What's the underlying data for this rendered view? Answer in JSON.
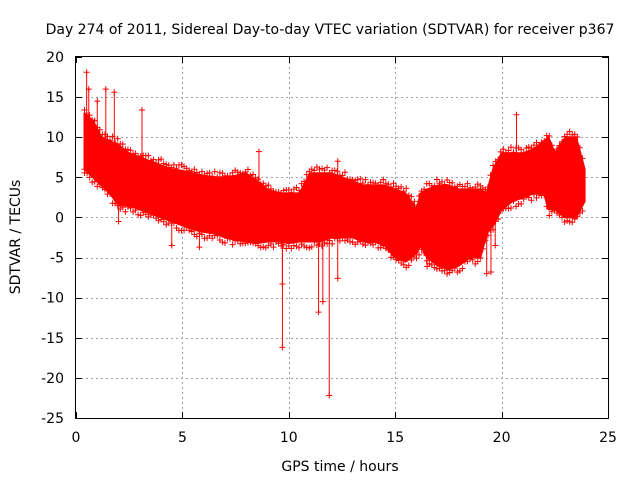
{
  "chart_data": {
    "type": "scatter",
    "title": "Day 274 of 2011, Sidereal Day-to-day VTEC variation (SDTVAR) for receiver p367",
    "xlabel": "GPS time / hours",
    "ylabel": "SDTVAR / TECUs",
    "xlim": [
      0,
      25
    ],
    "ylim": [
      -25,
      20
    ],
    "xticks": [
      0,
      5,
      10,
      15,
      20,
      25
    ],
    "yticks": [
      -25,
      -20,
      -15,
      -10,
      -5,
      0,
      5,
      10,
      15,
      20
    ],
    "grid": true,
    "point_style": "plus",
    "series": [
      {
        "name": "SDTVAR",
        "color": "#ff0000",
        "envelope": {
          "x": [
            0.4,
            0.8,
            1.2,
            1.6,
            2.0,
            2.5,
            3.0,
            3.5,
            4.0,
            4.5,
            5.0,
            5.5,
            6.0,
            6.5,
            7.0,
            7.5,
            8.0,
            8.5,
            9.0,
            9.5,
            10.0,
            10.5,
            11.0,
            11.5,
            12.0,
            12.5,
            13.0,
            13.5,
            14.0,
            14.5,
            15.0,
            15.5,
            16.0,
            16.2,
            16.5,
            17.0,
            17.5,
            18.0,
            18.5,
            19.0,
            19.3,
            19.6,
            20.0,
            20.5,
            21.0,
            21.5,
            22.0,
            22.2,
            22.5,
            23.0,
            23.5,
            23.9
          ],
          "upper": [
            13.0,
            12.0,
            10.0,
            9.5,
            9.0,
            8.0,
            7.5,
            7.0,
            6.5,
            6.0,
            5.8,
            5.5,
            5.2,
            5.0,
            5.0,
            5.2,
            5.5,
            4.5,
            3.5,
            3.0,
            3.0,
            3.0,
            5.5,
            5.5,
            5.5,
            5.0,
            4.5,
            4.0,
            4.0,
            4.0,
            3.5,
            3.0,
            1.0,
            3.0,
            3.5,
            4.0,
            4.0,
            3.5,
            3.5,
            3.5,
            3.0,
            6.0,
            8.0,
            8.0,
            8.0,
            8.5,
            9.5,
            10.0,
            8.0,
            10.0,
            10.0,
            6.0
          ],
          "lower": [
            6.0,
            5.0,
            4.0,
            3.0,
            1.5,
            1.5,
            1.0,
            0.5,
            0.0,
            -0.5,
            -1.0,
            -1.5,
            -1.8,
            -2.0,
            -2.5,
            -2.8,
            -3.0,
            -3.2,
            -3.0,
            -3.0,
            -3.2,
            -3.0,
            -3.0,
            -3.0,
            -2.5,
            -2.5,
            -2.5,
            -3.0,
            -3.0,
            -3.5,
            -5.0,
            -5.5,
            -4.5,
            -3.5,
            -5.0,
            -6.0,
            -6.5,
            -6.0,
            -5.0,
            -5.0,
            -2.0,
            -1.0,
            1.0,
            2.0,
            2.5,
            3.0,
            3.0,
            1.0,
            1.0,
            0.0,
            0.0,
            2.0
          ]
        },
        "outliers": [
          {
            "x": 0.5,
            "y": 18.1
          },
          {
            "x": 0.6,
            "y": 16.0
          },
          {
            "x": 1.0,
            "y": 14.5
          },
          {
            "x": 1.4,
            "y": 16.0
          },
          {
            "x": 1.8,
            "y": 15.6
          },
          {
            "x": 3.1,
            "y": 13.4
          },
          {
            "x": 8.6,
            "y": 8.2
          },
          {
            "x": 9.7,
            "y": -8.3
          },
          {
            "x": 9.7,
            "y": -16.2
          },
          {
            "x": 11.4,
            "y": -11.8
          },
          {
            "x": 11.6,
            "y": -10.5
          },
          {
            "x": 11.9,
            "y": -22.2
          },
          {
            "x": 12.3,
            "y": -7.6
          },
          {
            "x": 12.3,
            "y": 7.0
          },
          {
            "x": 15.9,
            "y": 2.0
          },
          {
            "x": 16.5,
            "y": -6.1
          },
          {
            "x": 19.3,
            "y": -7.0
          },
          {
            "x": 19.5,
            "y": -6.8
          },
          {
            "x": 19.7,
            "y": -3.5
          },
          {
            "x": 20.7,
            "y": 12.8
          },
          {
            "x": 4.5,
            "y": -3.5
          },
          {
            "x": 5.8,
            "y": -3.7
          },
          {
            "x": 0.4,
            "y": 6.0
          },
          {
            "x": 2.0,
            "y": -0.5
          }
        ]
      }
    ]
  }
}
